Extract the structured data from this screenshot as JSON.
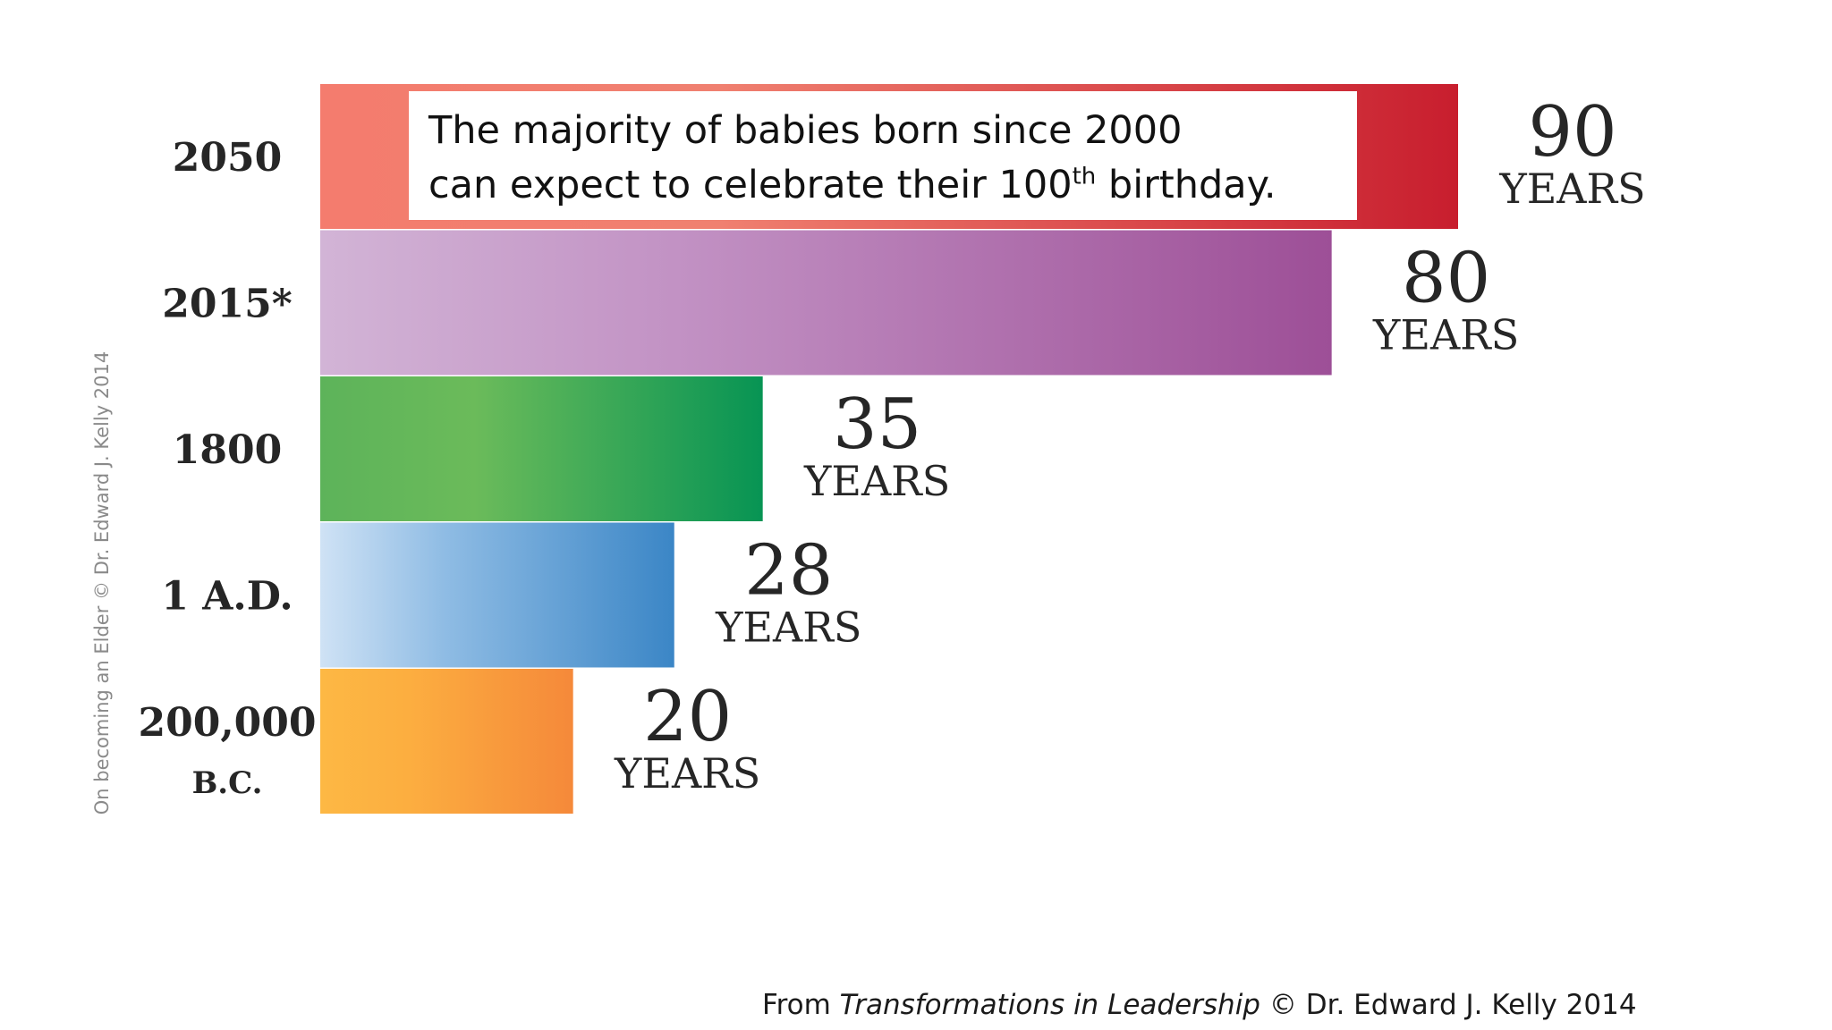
{
  "chart_data": {
    "type": "bar",
    "orientation": "horizontal",
    "categories": [
      "2050",
      "2015*",
      "1800",
      "1 A.D.",
      "200,000 B.C."
    ],
    "values": [
      90,
      80,
      35,
      28,
      20
    ],
    "unit_label": "YEARS",
    "title": "",
    "xlabel": "",
    "ylabel": "",
    "grid": false,
    "bar_gradients": [
      [
        "#f47c6e",
        "#f08070",
        "#c81e2e"
      ],
      [
        "#d2b4d6",
        "#c292c4",
        "#9d4f97"
      ],
      [
        "#5db35a",
        "#6bbb5a",
        "#079454"
      ],
      [
        "#cfe2f5",
        "#8fbce4",
        "#3b86c6"
      ],
      [
        "#fdb844",
        "#fcae40",
        "#f5893a"
      ]
    ]
  },
  "callout": {
    "line1": "The majority of babies born since 2000",
    "line2_before": "can expect to celebrate their 100",
    "line2_sup": "th",
    "line2_after": " birthday."
  },
  "credit_vertical": "On becoming an Elder © Dr. Edward J. Kelly 2014",
  "footer": {
    "prefix": "From ",
    "book": "Transformations in Leadership",
    "suffix": " © Dr. Edward J. Kelly 2014"
  }
}
